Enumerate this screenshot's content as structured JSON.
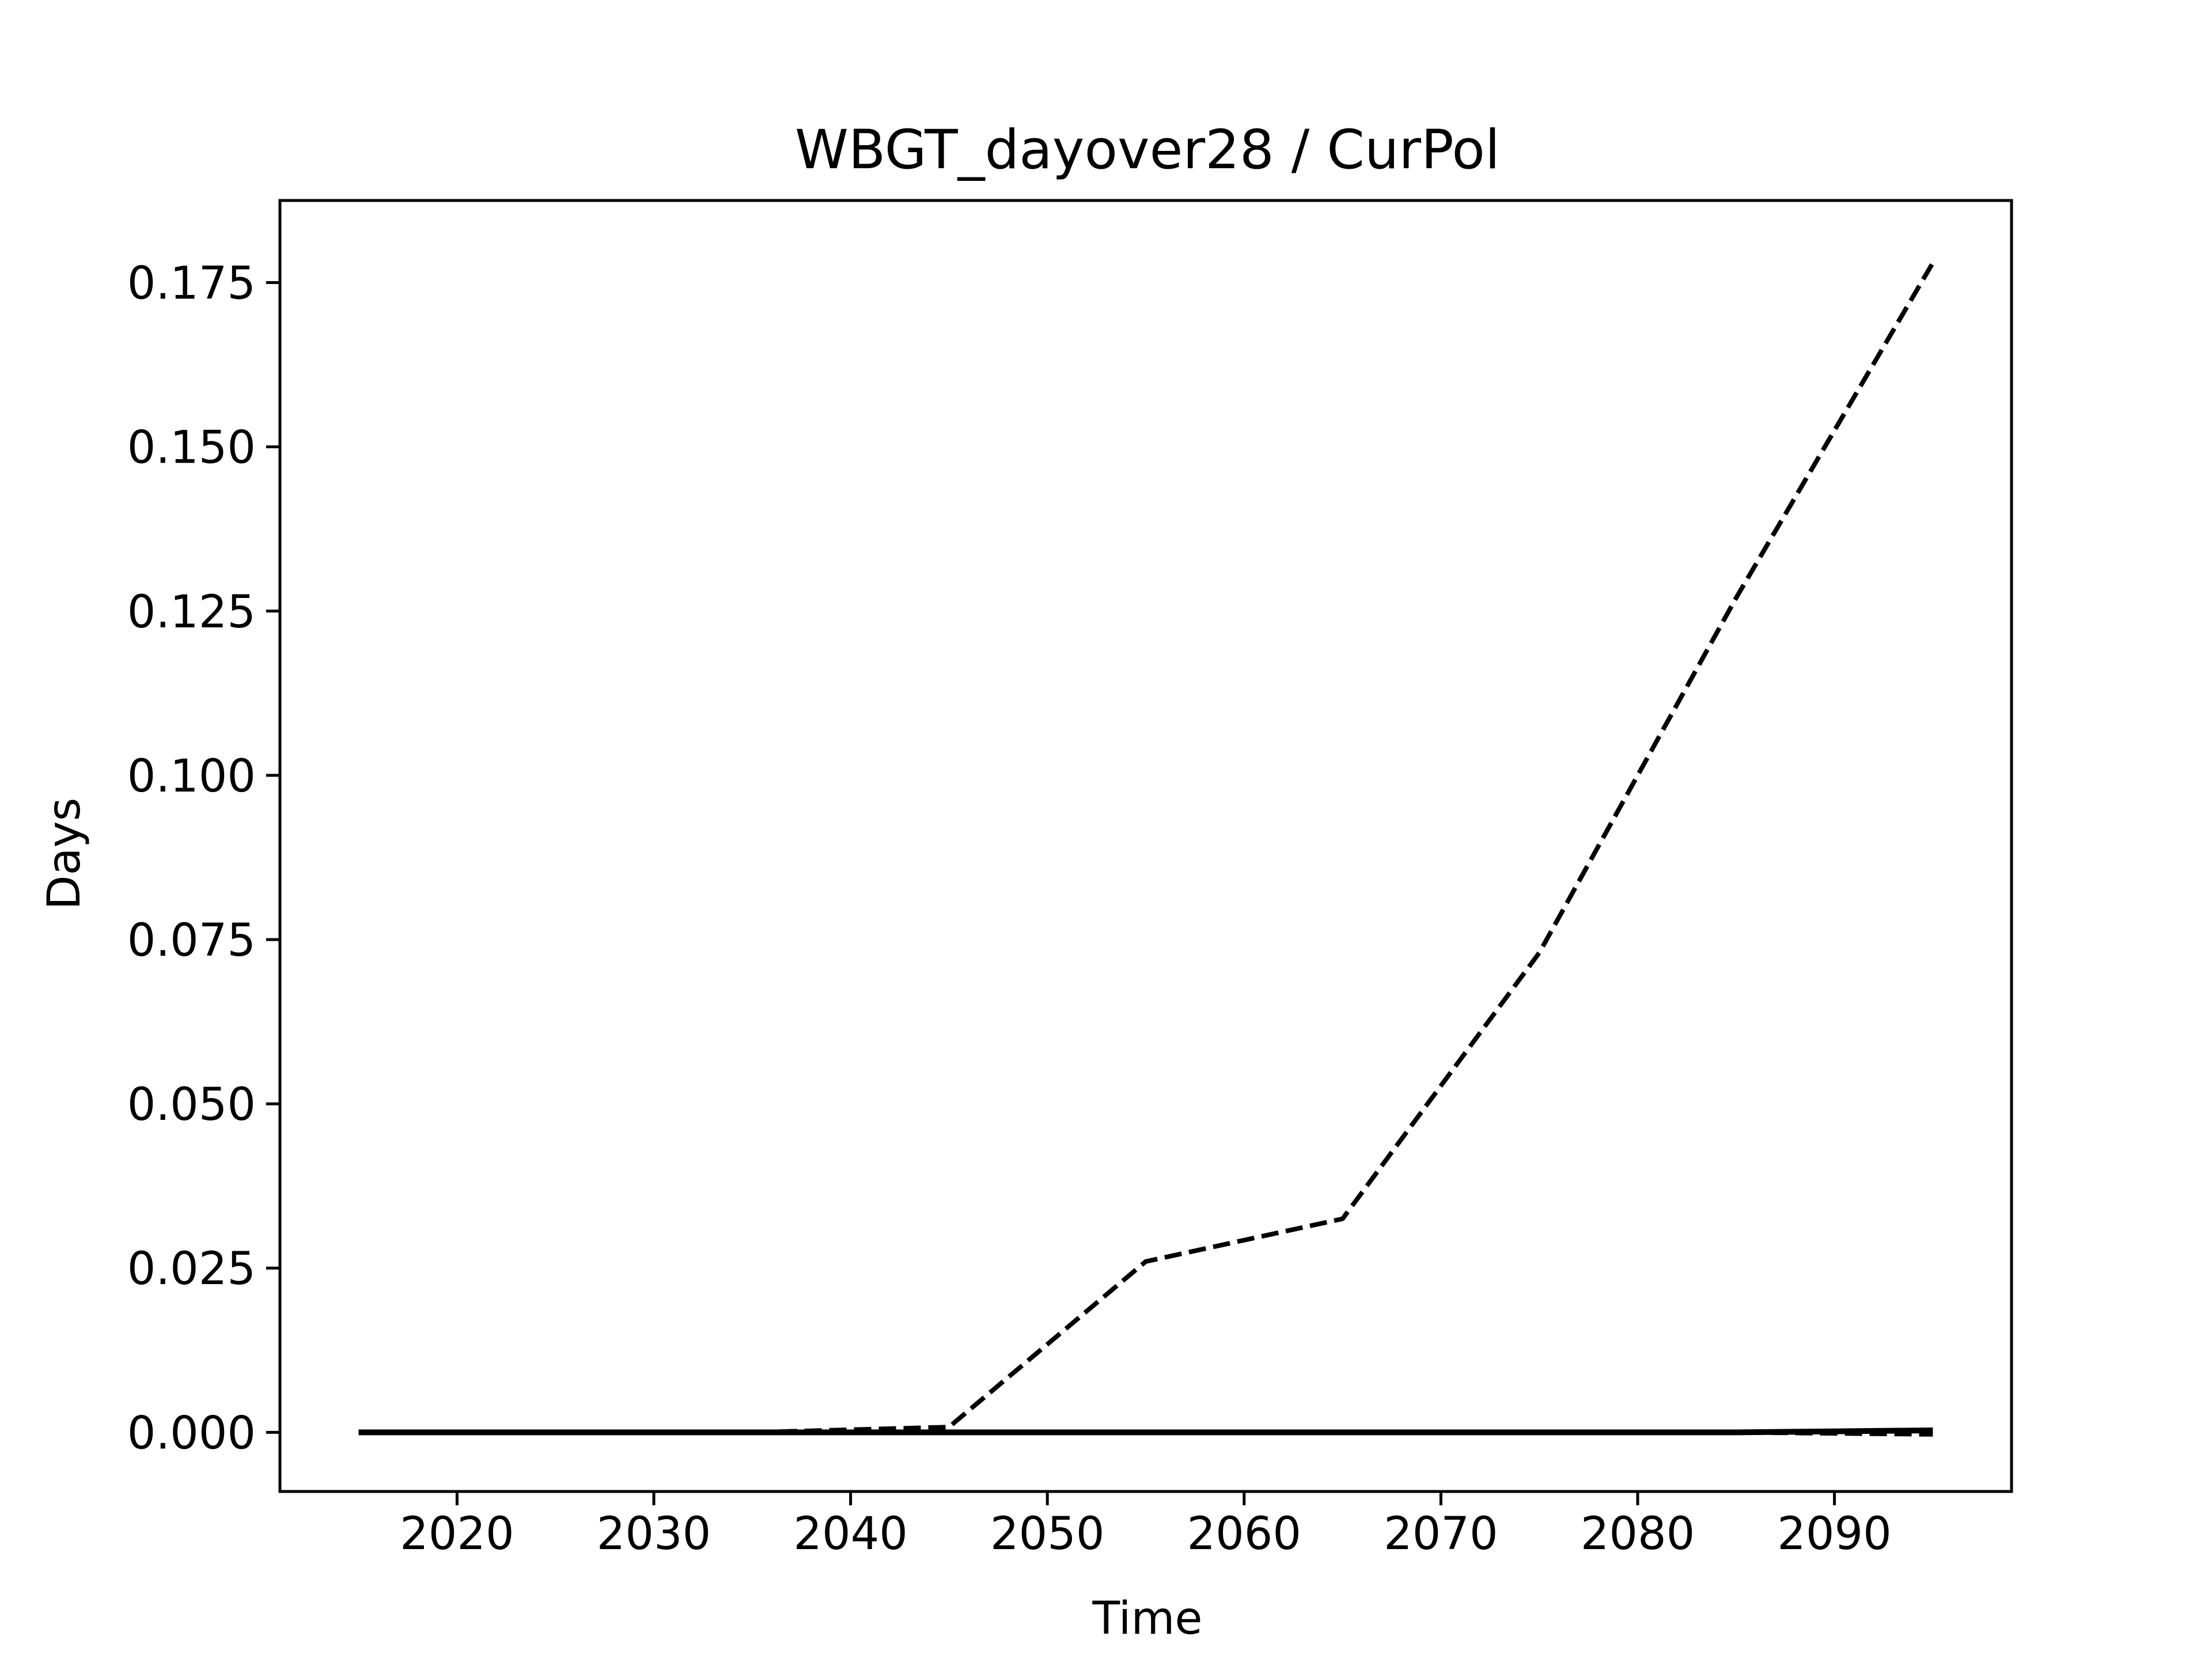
{
  "chart_data": {
    "type": "line",
    "title": "WBGT_dayover28 / CurPol",
    "xlabel": "Time",
    "ylabel": "Days",
    "xlim": [
      2011,
      2099
    ],
    "ylim": [
      -0.009,
      0.1875
    ],
    "xticks": [
      2020,
      2030,
      2040,
      2050,
      2060,
      2070,
      2080,
      2090
    ],
    "yticks": [
      0.0,
      0.025,
      0.05,
      0.075,
      0.1,
      0.125,
      0.15,
      0.175
    ],
    "xtick_labels": [
      "2020",
      "2030",
      "2040",
      "2050",
      "2060",
      "2070",
      "2080",
      "2090"
    ],
    "ytick_labels": [
      "0.000",
      "0.025",
      "0.050",
      "0.075",
      "0.100",
      "0.125",
      "0.150",
      "0.175"
    ],
    "grid": false,
    "series": [
      {
        "style": "dashed",
        "color": "#000000",
        "x": [
          2015,
          2025,
          2035,
          2045,
          2055,
          2065,
          2075,
          2085,
          2095
        ],
        "y": [
          0.0,
          0.0,
          0.0,
          0.0008,
          0.026,
          0.0325,
          0.073,
          0.127,
          0.178
        ]
      },
      {
        "style": "solid",
        "color": "#000000",
        "x": [
          2015,
          2025,
          2035,
          2045,
          2055,
          2065,
          2075,
          2085,
          2095
        ],
        "y": [
          0.0,
          0.0,
          0.0,
          0.0,
          0.0,
          0.0,
          0.0,
          0.0,
          0.0003
        ]
      },
      {
        "style": "dashed",
        "color": "#000000",
        "x": [
          2015,
          2025,
          2035,
          2045,
          2055,
          2065,
          2075,
          2085,
          2095
        ],
        "y": [
          0.0,
          0.0,
          0.0,
          0.0,
          0.0,
          0.0,
          0.0,
          0.0,
          -0.0003
        ]
      }
    ]
  }
}
